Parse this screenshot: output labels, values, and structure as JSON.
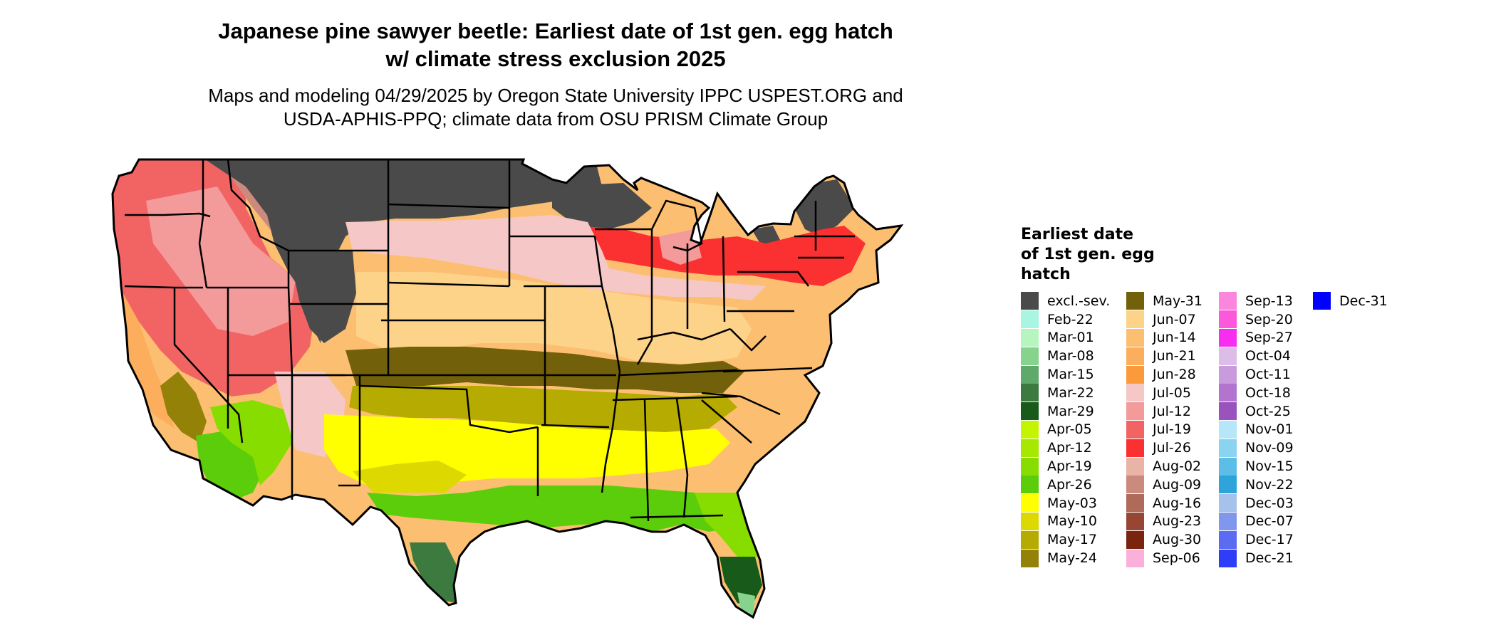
{
  "header": {
    "title_line1": "Japanese pine sawyer beetle: Earliest date of 1st gen. egg hatch",
    "title_line2": "w/ climate stress exclusion 2025",
    "subtitle_line1": "Maps and modeling 04/29/2025 by Oregon State University IPPC USPEST.ORG and",
    "subtitle_line2": "USDA-APHIS-PPQ; climate data from OSU PRISM Climate Group"
  },
  "legend": {
    "title_line1": "Earliest date",
    "title_line2": "of 1st gen. egg",
    "title_line3": "hatch",
    "items": [
      {
        "label": "excl.-sev.",
        "color": "#4a4a4a"
      },
      {
        "label": "Feb-22",
        "color": "#a8f5e2"
      },
      {
        "label": "Mar-01",
        "color": "#b7f5c0"
      },
      {
        "label": "Mar-08",
        "color": "#86d38e"
      },
      {
        "label": "Mar-15",
        "color": "#5fa96a"
      },
      {
        "label": "Mar-22",
        "color": "#3c7a3f"
      },
      {
        "label": "Mar-29",
        "color": "#175a19"
      },
      {
        "label": "Apr-05",
        "color": "#c4f500"
      },
      {
        "label": "Apr-12",
        "color": "#a6e800"
      },
      {
        "label": "Apr-19",
        "color": "#88dd00"
      },
      {
        "label": "Apr-26",
        "color": "#5ccd0a"
      },
      {
        "label": "May-03",
        "color": "#ffff00"
      },
      {
        "label": "May-10",
        "color": "#dcd800"
      },
      {
        "label": "May-17",
        "color": "#b6ab00"
      },
      {
        "label": "May-24",
        "color": "#948108"
      },
      {
        "label": "May-31",
        "color": "#72600a"
      },
      {
        "label": "Jun-07",
        "color": "#fdd38a"
      },
      {
        "label": "Jun-14",
        "color": "#fcbf72"
      },
      {
        "label": "Jun-21",
        "color": "#fcae5c"
      },
      {
        "label": "Jun-28",
        "color": "#fb9a3a"
      },
      {
        "label": "Jul-05",
        "color": "#f6c7c7"
      },
      {
        "label": "Jul-12",
        "color": "#f39a9a"
      },
      {
        "label": "Jul-19",
        "color": "#f26464"
      },
      {
        "label": "Jul-26",
        "color": "#fb3030"
      },
      {
        "label": "Aug-02",
        "color": "#e9b3a8"
      },
      {
        "label": "Aug-09",
        "color": "#ca8b7e"
      },
      {
        "label": "Aug-16",
        "color": "#b06a5a"
      },
      {
        "label": "Aug-23",
        "color": "#974634"
      },
      {
        "label": "Aug-30",
        "color": "#7a2410"
      },
      {
        "label": "Sep-06",
        "color": "#fbb0dc"
      },
      {
        "label": "Sep-13",
        "color": "#fc86db"
      },
      {
        "label": "Sep-20",
        "color": "#fc58dc"
      },
      {
        "label": "Sep-27",
        "color": "#f72ef0"
      },
      {
        "label": "Oct-04",
        "color": "#dcbde8"
      },
      {
        "label": "Oct-11",
        "color": "#c99add"
      },
      {
        "label": "Oct-18",
        "color": "#b274ce"
      },
      {
        "label": "Oct-25",
        "color": "#9a52bd"
      },
      {
        "label": "Nov-01",
        "color": "#b5e6f9"
      },
      {
        "label": "Nov-09",
        "color": "#8ad3f1"
      },
      {
        "label": "Nov-15",
        "color": "#5cbde6"
      },
      {
        "label": "Nov-22",
        "color": "#2ea4da"
      },
      {
        "label": "Dec-03",
        "color": "#a4c2ec"
      },
      {
        "label": "Dec-07",
        "color": "#7f97ec"
      },
      {
        "label": "Dec-17",
        "color": "#5b6cf2"
      },
      {
        "label": "Dec-21",
        "color": "#2e3df8"
      },
      {
        "label": "Dec-31",
        "color": "#0000ff"
      }
    ]
  },
  "map_colors": {
    "excluded": "#4a4a4a",
    "red_bright": "#fb3030",
    "red_mid": "#f26464",
    "pink": "#f39a9a",
    "pink_light": "#f6c7c7",
    "brown_light": "#ca8b7e",
    "orange_light": "#fdd38a",
    "orange": "#fcbf72",
    "orange_deep": "#fcae5c",
    "olive_dark": "#72600a",
    "olive": "#948108",
    "olive_light": "#b6ab00",
    "yellow_dark": "#dcd800",
    "yellow": "#ffff00",
    "green_lime": "#88dd00",
    "green_lime2": "#5ccd0a",
    "green_dark": "#3c7a3f",
    "green_deeper": "#175a19",
    "mint": "#86d38e",
    "state_border": "#000000"
  }
}
